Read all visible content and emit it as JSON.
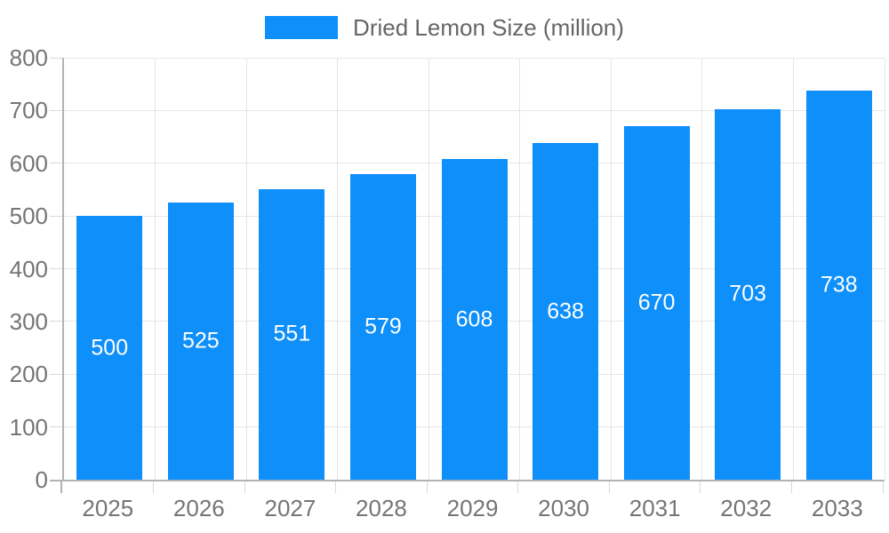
{
  "colors": {
    "bar": "#0e8ff9",
    "grid": "#e6e6e6",
    "axis": "#b3b3b3",
    "tick": "#d9d9d9",
    "tick_label": "#757575",
    "legend_text": "#666666",
    "value_label": "#ffffff",
    "background": "#ffffff"
  },
  "chart_data": {
    "type": "bar",
    "title": "",
    "xlabel": "",
    "ylabel": "",
    "legend_position": "top",
    "legend_entries": [
      {
        "label": "Dried Lemon Size (million)",
        "color": "#0e8ff9"
      }
    ],
    "categories": [
      "2025",
      "2026",
      "2027",
      "2028",
      "2029",
      "2030",
      "2031",
      "2032",
      "2033"
    ],
    "series": [
      {
        "name": "Dried Lemon Size (million)",
        "values": [
          500,
          525,
          551,
          579,
          608,
          638,
          670,
          703,
          738
        ]
      }
    ],
    "bar_labels": [
      "500",
      "525",
      "551",
      "579",
      "608",
      "638",
      "670",
      "703",
      "738"
    ],
    "ylim": [
      0,
      800
    ],
    "ytick_labels": [
      "0",
      "100",
      "200",
      "300",
      "400",
      "500",
      "600",
      "700",
      "800"
    ],
    "grid": true
  }
}
